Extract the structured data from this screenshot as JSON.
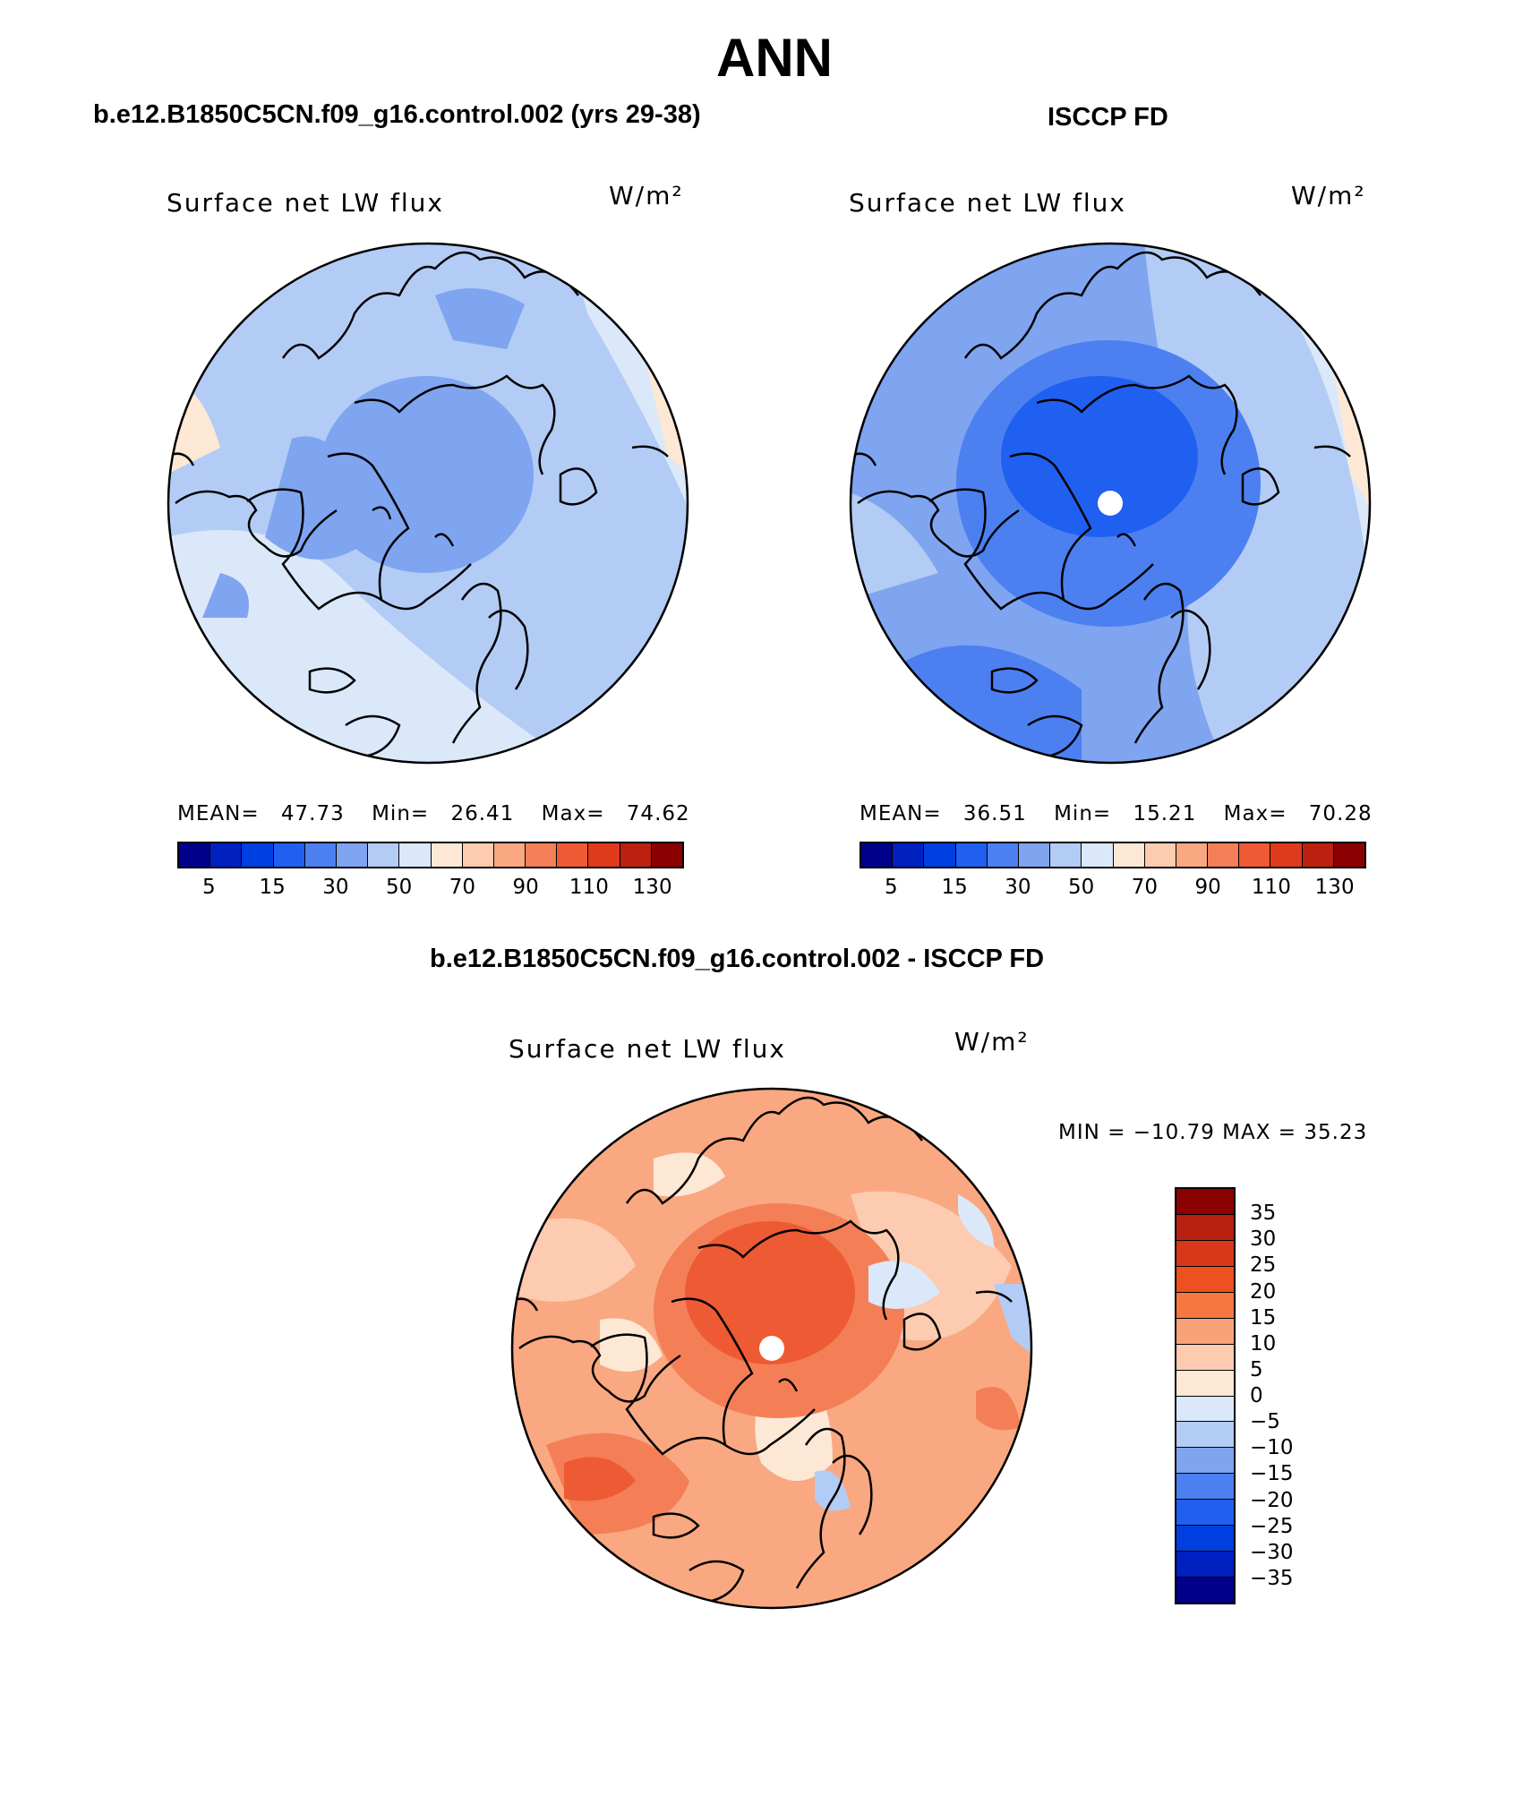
{
  "figure": {
    "title": "ANN",
    "units_label": "W/m²"
  },
  "panel_model": {
    "case_title": "b.e12.B1850C5CN.f09_g16.control.002 (yrs 29-38)",
    "field": "Surface net LW flux",
    "units": "W/m²",
    "stats": {
      "mean_label": "MEAN=",
      "mean": "47.73",
      "min_label": "Min=",
      "min": "26.41",
      "max_label": "Max=",
      "max": "74.62"
    }
  },
  "panel_obs": {
    "case_title": "ISCCP FD",
    "field": "Surface net LW flux",
    "units": "W/m²",
    "stats": {
      "mean_label": "MEAN=",
      "mean": "36.51",
      "min_label": "Min=",
      "min": "15.21",
      "max_label": "Max=",
      "max": "70.28"
    }
  },
  "panel_diff": {
    "case_title": "b.e12.B1850C5CN.f09_g16.control.002 - ISCCP FD",
    "field": "Surface net LW flux",
    "units": "W/m²",
    "minmax": "MIN = −10.79 MAX =   35.23"
  },
  "colorbar_abs": {
    "colors": [
      "#00008b",
      "#0020c0",
      "#0040e0",
      "#2060f0",
      "#4c80f0",
      "#7fa4f0",
      "#b3ccf5",
      "#dbe8fa",
      "#fde8d6",
      "#fccbb0",
      "#f9a882",
      "#f47f57",
      "#ee5a33",
      "#de3a1c",
      "#bb2010",
      "#8b0000"
    ],
    "tick_labels": [
      "5",
      "15",
      "30",
      "50",
      "70",
      "90",
      "110",
      "130"
    ]
  },
  "colorbar_diff": {
    "colors": [
      "#8b0000",
      "#b82010",
      "#d83818",
      "#ee5020",
      "#f47840",
      "#f9a27a",
      "#fccbb0",
      "#fde8d6",
      "#dbe8fa",
      "#b3ccf5",
      "#7fa4f0",
      "#4c80f0",
      "#2060f0",
      "#0040e0",
      "#0020c0",
      "#00008b"
    ],
    "tick_labels": [
      "35",
      "30",
      "25",
      "20",
      "15",
      "10",
      "5",
      "0",
      "−5",
      "−10",
      "−15",
      "−20",
      "−25",
      "−30",
      "−35"
    ]
  }
}
